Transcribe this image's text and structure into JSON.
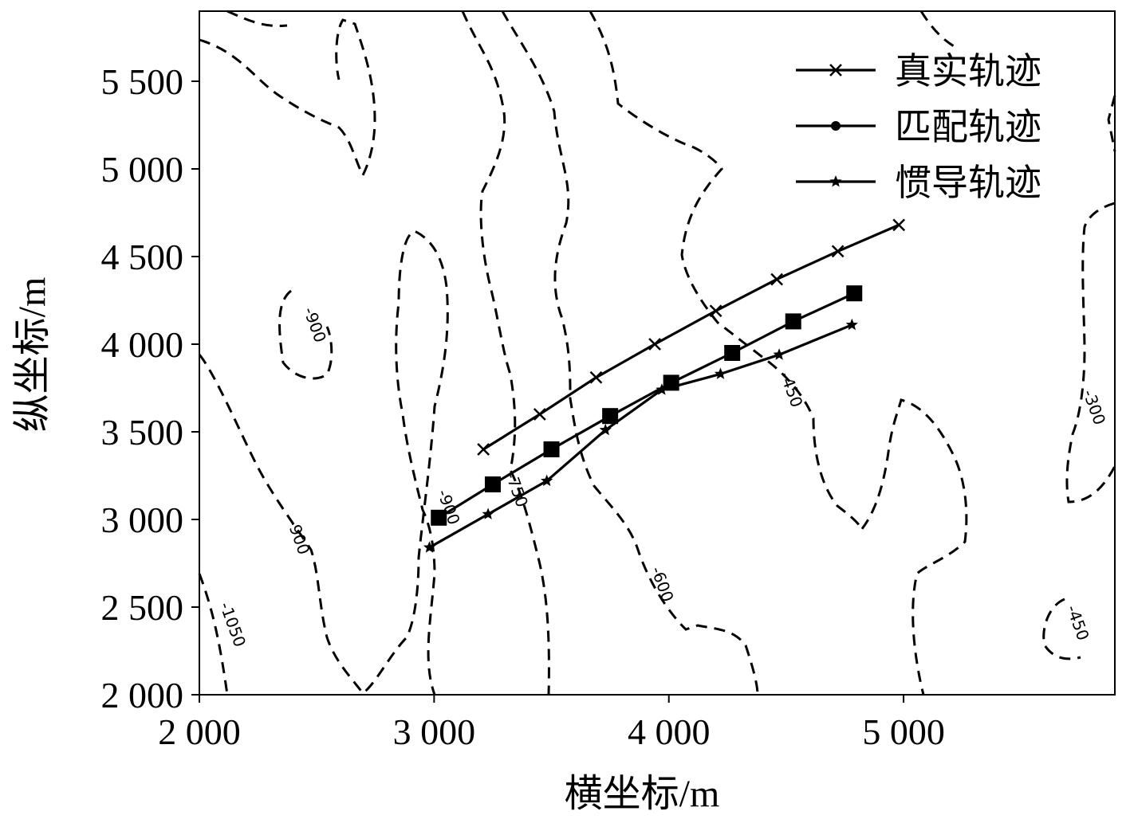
{
  "chart_data": {
    "type": "line",
    "title": "",
    "xlabel": "横坐标/m",
    "ylabel": "纵坐标/m",
    "xlim": [
      2000,
      5900
    ],
    "ylim": [
      2000,
      5900
    ],
    "x_ticks": [
      2000,
      3000,
      4000,
      5000
    ],
    "x_tick_labels": [
      "2 000",
      "3 000",
      "4 000",
      "5 000"
    ],
    "y_ticks": [
      2000,
      2500,
      3000,
      3500,
      4000,
      4500,
      5000,
      5500
    ],
    "y_tick_labels": [
      "2 000",
      "2 500",
      "3 000",
      "3 500",
      "4 000",
      "4 500",
      "5 000",
      "5 500"
    ],
    "grid": false,
    "legend_position": "top-right",
    "series": [
      {
        "name": "真实轨迹",
        "marker": "x",
        "x": [
          3210,
          3450,
          3690,
          3940,
          4200,
          4460,
          4720,
          4980
        ],
        "y": [
          3400,
          3600,
          3810,
          4000,
          4190,
          4370,
          4530,
          4680
        ]
      },
      {
        "name": "匹配轨迹",
        "marker": "square",
        "x": [
          3020,
          3250,
          3500,
          3750,
          4010,
          4270,
          4530,
          4790
        ],
        "y": [
          3010,
          3200,
          3400,
          3590,
          3780,
          3950,
          4130,
          4290
        ]
      },
      {
        "name": "惯导轨迹",
        "marker": "star",
        "x": [
          2980,
          3230,
          3480,
          3730,
          3970,
          4220,
          4470,
          4780
        ],
        "y": [
          2840,
          3030,
          3220,
          3510,
          3740,
          3830,
          3940,
          4110
        ]
      }
    ],
    "contour_labels": [
      {
        "text": "-900",
        "x": 2470,
        "y": 4100
      },
      {
        "text": "-900",
        "x": 2400,
        "y": 2890
      },
      {
        "text": "-1050",
        "x": 2120,
        "y": 2390
      },
      {
        "text": "-900",
        "x": 3040,
        "y": 3060
      },
      {
        "text": "-750",
        "x": 3330,
        "y": 3160
      },
      {
        "text": "-600",
        "x": 3950,
        "y": 2620
      },
      {
        "text": "-450",
        "x": 4500,
        "y": 3730
      },
      {
        "text": "-300",
        "x": 5790,
        "y": 3630
      },
      {
        "text": "-450",
        "x": 5720,
        "y": 2400
      }
    ]
  }
}
